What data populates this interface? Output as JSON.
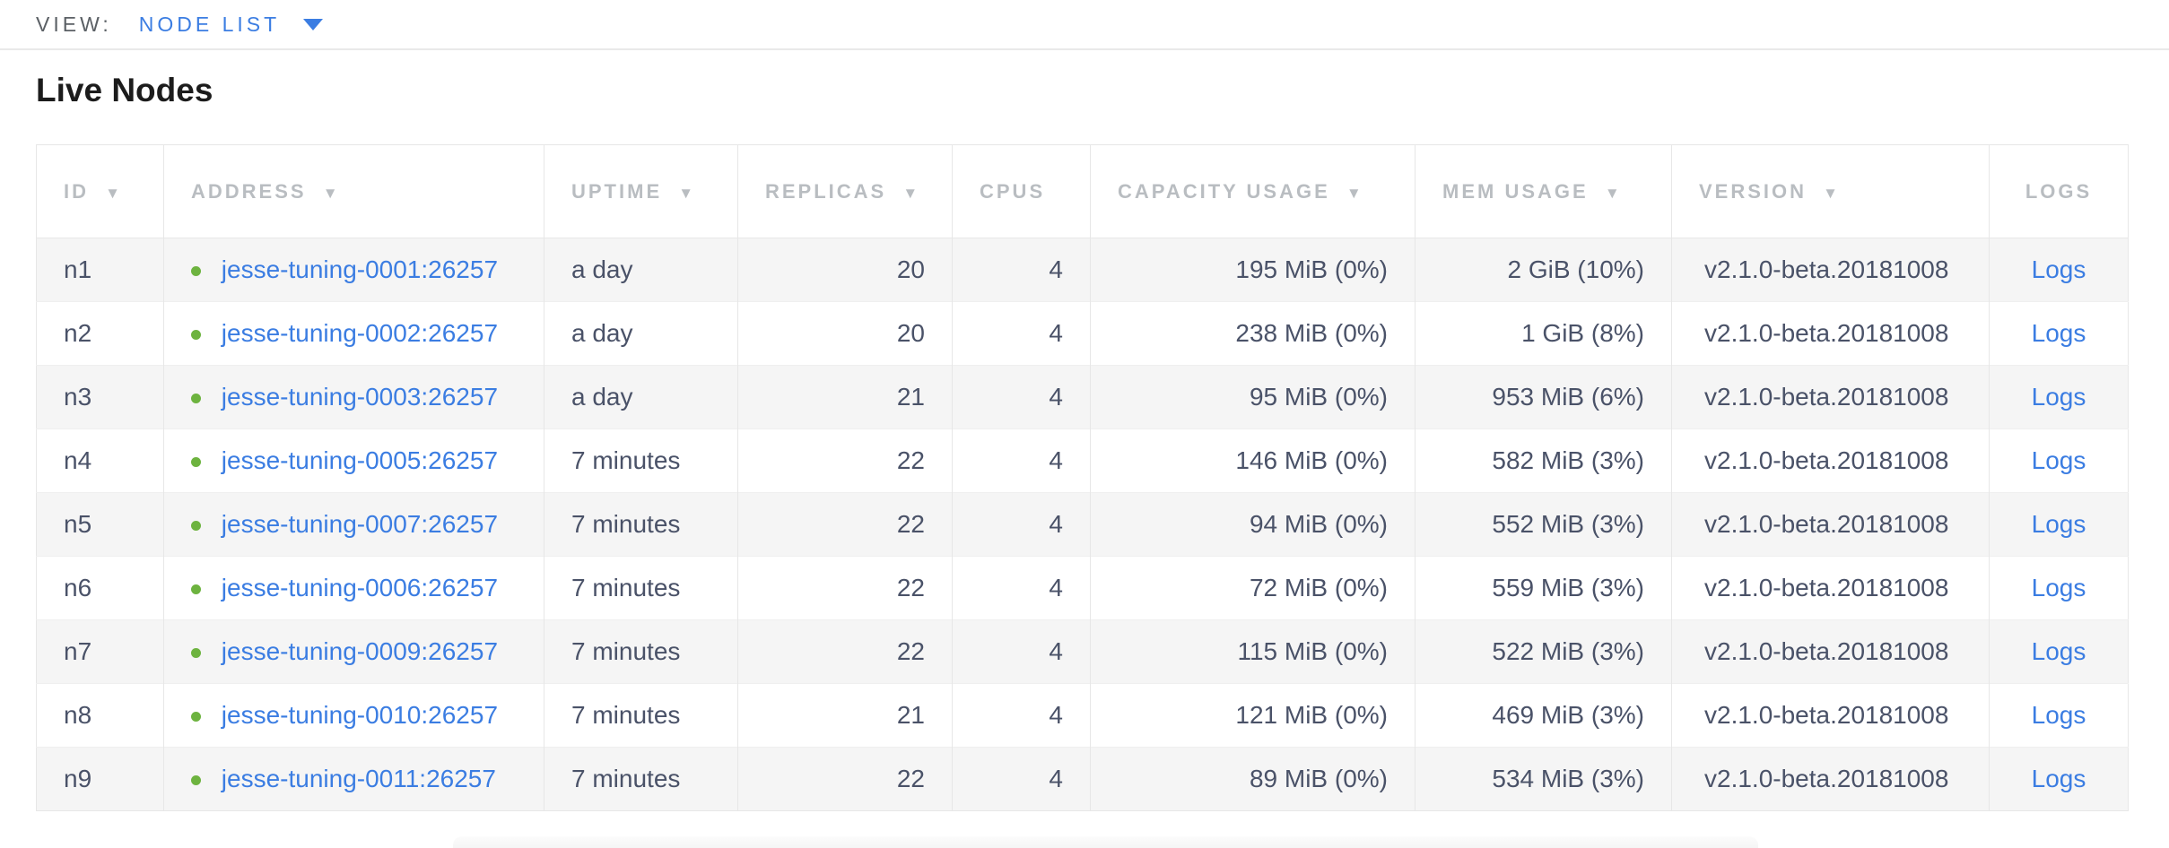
{
  "view_bar": {
    "label": "VIEW:",
    "selected": "NODE LIST"
  },
  "page": {
    "title": "Live Nodes"
  },
  "icons": {
    "sort_desc": "▼",
    "dropdown_caret": "chevron-down",
    "live_status": "green-dot"
  },
  "colors": {
    "link_blue": "#3b7de2",
    "live_green": "#6db33f",
    "header_gray": "#b9bdc1",
    "cell_text": "#4a5268",
    "row_alt": "#f5f5f5",
    "border": "#e7e7e7"
  },
  "table": {
    "columns": [
      {
        "label": "ID",
        "sortable": true
      },
      {
        "label": "ADDRESS",
        "sortable": true
      },
      {
        "label": "UPTIME",
        "sortable": true
      },
      {
        "label": "REPLICAS",
        "sortable": true
      },
      {
        "label": "CPUS",
        "sortable": false
      },
      {
        "label": "CAPACITY USAGE",
        "sortable": true
      },
      {
        "label": "MEM USAGE",
        "sortable": true
      },
      {
        "label": "VERSION",
        "sortable": true
      },
      {
        "label": "LOGS",
        "sortable": false
      }
    ],
    "rows": [
      {
        "id": "n1",
        "address": "jesse-tuning-0001:26257",
        "uptime": "a day",
        "replicas": "20",
        "cpus": "4",
        "capacity": "195 MiB (0%)",
        "mem": "2 GiB (10%)",
        "version": "v2.1.0-beta.20181008",
        "logs": "Logs"
      },
      {
        "id": "n2",
        "address": "jesse-tuning-0002:26257",
        "uptime": "a day",
        "replicas": "20",
        "cpus": "4",
        "capacity": "238 MiB (0%)",
        "mem": "1 GiB (8%)",
        "version": "v2.1.0-beta.20181008",
        "logs": "Logs"
      },
      {
        "id": "n3",
        "address": "jesse-tuning-0003:26257",
        "uptime": "a day",
        "replicas": "21",
        "cpus": "4",
        "capacity": "95 MiB (0%)",
        "mem": "953 MiB (6%)",
        "version": "v2.1.0-beta.20181008",
        "logs": "Logs"
      },
      {
        "id": "n4",
        "address": "jesse-tuning-0005:26257",
        "uptime": "7 minutes",
        "replicas": "22",
        "cpus": "4",
        "capacity": "146 MiB (0%)",
        "mem": "582 MiB (3%)",
        "version": "v2.1.0-beta.20181008",
        "logs": "Logs"
      },
      {
        "id": "n5",
        "address": "jesse-tuning-0007:26257",
        "uptime": "7 minutes",
        "replicas": "22",
        "cpus": "4",
        "capacity": "94 MiB (0%)",
        "mem": "552 MiB (3%)",
        "version": "v2.1.0-beta.20181008",
        "logs": "Logs"
      },
      {
        "id": "n6",
        "address": "jesse-tuning-0006:26257",
        "uptime": "7 minutes",
        "replicas": "22",
        "cpus": "4",
        "capacity": "72 MiB (0%)",
        "mem": "559 MiB (3%)",
        "version": "v2.1.0-beta.20181008",
        "logs": "Logs"
      },
      {
        "id": "n7",
        "address": "jesse-tuning-0009:26257",
        "uptime": "7 minutes",
        "replicas": "22",
        "cpus": "4",
        "capacity": "115 MiB (0%)",
        "mem": "522 MiB (3%)",
        "version": "v2.1.0-beta.20181008",
        "logs": "Logs"
      },
      {
        "id": "n8",
        "address": "jesse-tuning-0010:26257",
        "uptime": "7 minutes",
        "replicas": "21",
        "cpus": "4",
        "capacity": "121 MiB (0%)",
        "mem": "469 MiB (3%)",
        "version": "v2.1.0-beta.20181008",
        "logs": "Logs"
      },
      {
        "id": "n9",
        "address": "jesse-tuning-0011:26257",
        "uptime": "7 minutes",
        "replicas": "22",
        "cpus": "4",
        "capacity": "89 MiB (0%)",
        "mem": "534 MiB (3%)",
        "version": "v2.1.0-beta.20181008",
        "logs": "Logs"
      }
    ]
  }
}
